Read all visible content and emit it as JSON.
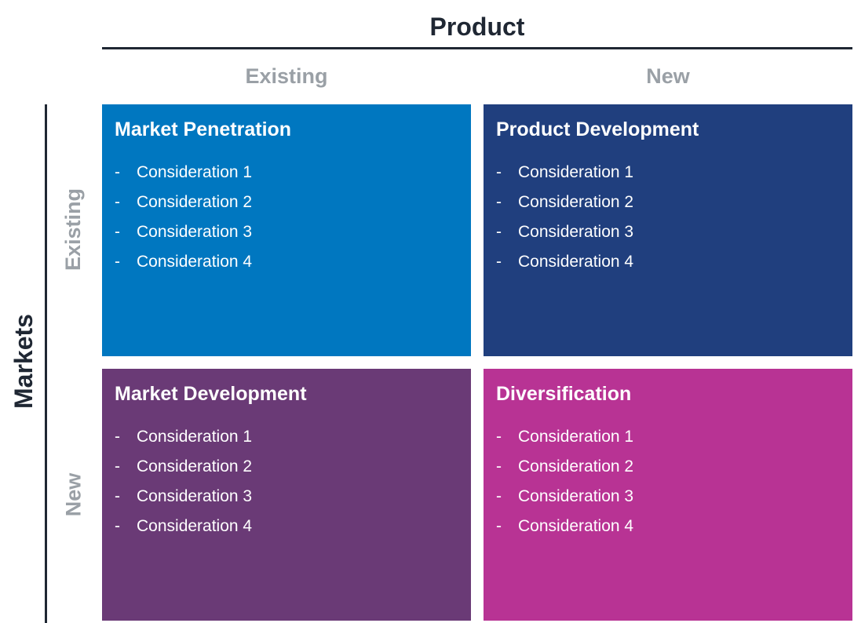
{
  "product": {
    "title": "Product",
    "columns": [
      "Existing",
      "New"
    ]
  },
  "markets": {
    "title": "Markets",
    "rows": [
      "Existing",
      "New"
    ]
  },
  "quadrants": {
    "top_left": {
      "title": "Market Penetration",
      "color": "#0077c0",
      "items": [
        "Consideration 1",
        "Consideration 2",
        "Consideration 3",
        "Consideration 4"
      ]
    },
    "top_right": {
      "title": "Product Development",
      "color": "#203f7e",
      "items": [
        "Consideration 1",
        "Consideration 2",
        "Consideration 3",
        "Consideration 4"
      ]
    },
    "bottom_left": {
      "title": "Market Development",
      "color": "#6a3a76",
      "items": [
        "Consideration 1",
        "Consideration 2",
        "Consideration 3",
        "Consideration 4"
      ]
    },
    "bottom_right": {
      "title": "Diversification",
      "color": "#b83394",
      "items": [
        "Consideration 1",
        "Consideration 2",
        "Consideration 3",
        "Consideration 4"
      ]
    }
  },
  "bullet": "-",
  "colors": {
    "axis": "#1f2733",
    "label_gray": "#9aa0a6"
  }
}
